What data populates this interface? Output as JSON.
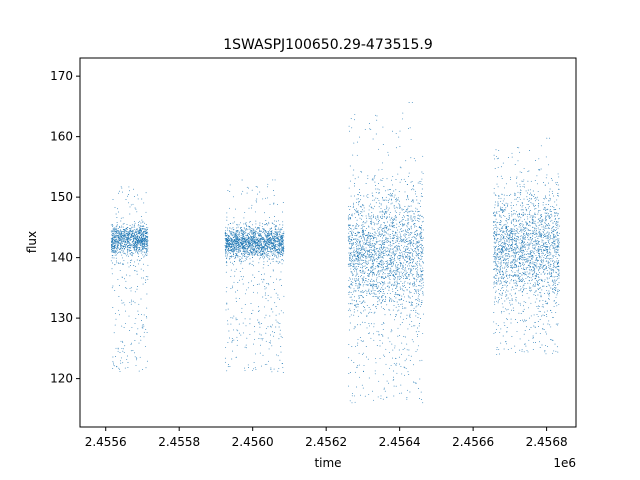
{
  "chart_data": {
    "type": "scatter",
    "title": "1SWASPJ100650.29-473515.9",
    "xlabel": "time",
    "ylabel": "flux",
    "x_offset_label": "1e6",
    "xlim": [
      2455530,
      2456880
    ],
    "ylim": [
      112,
      173
    ],
    "x_ticks": [
      2455600,
      2455800,
      2456000,
      2456200,
      2456400,
      2456600,
      2456800
    ],
    "x_tick_labels": [
      "2.4556",
      "2.4558",
      "2.4560",
      "2.4562",
      "2.4564",
      "2.4566",
      "2.4568"
    ],
    "y_ticks": [
      120,
      130,
      140,
      150,
      160,
      170
    ],
    "y_tick_labels": [
      "120",
      "130",
      "140",
      "150",
      "160",
      "170"
    ],
    "grid": false,
    "marker_color": "#1f77b4",
    "series": [
      {
        "segments": [
          {
            "x_start": 2455615,
            "x_end": 2455715,
            "center": 143,
            "core_sd": 1.2,
            "dip_floor": 121,
            "upper_max": 152
          },
          {
            "x_start": 2455925,
            "x_end": 2456085,
            "center": 142.5,
            "core_sd": 1.3,
            "dip_floor": 121,
            "upper_max": 153
          },
          {
            "x_start": 2456260,
            "x_end": 2456465,
            "center": 141,
            "core_sd": 5.0,
            "dip_floor": 116,
            "upper_max": 166
          },
          {
            "x_start": 2456655,
            "x_end": 2456835,
            "center": 142,
            "core_sd": 4.5,
            "dip_floor": 124,
            "upper_max": 160
          }
        ]
      }
    ]
  }
}
